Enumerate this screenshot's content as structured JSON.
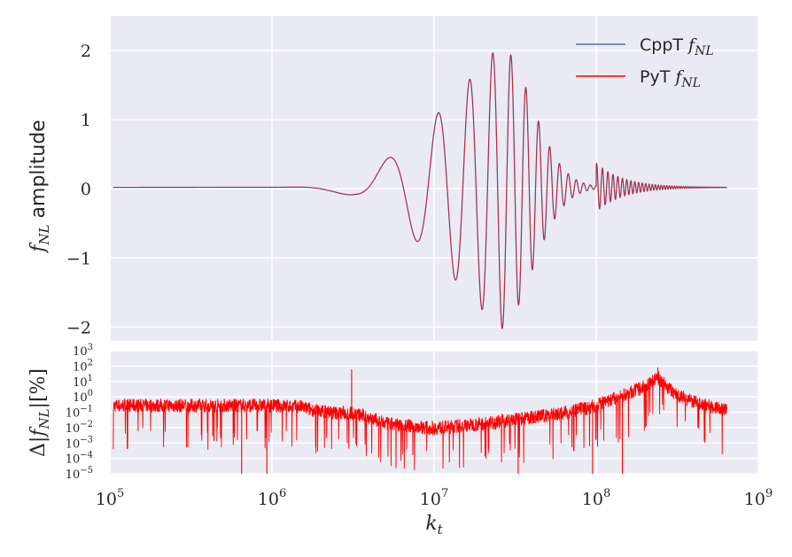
{
  "chart_data": [
    {
      "type": "line",
      "ylabel": "f_NL amplitude",
      "xscale": "log",
      "xlim": [
        100000,
        1000000000
      ],
      "ylim": [
        -2.2,
        2.5
      ],
      "yticks": [
        {
          "value": 2,
          "label": "2"
        },
        {
          "value": 1,
          "label": "1"
        },
        {
          "value": 0,
          "label": "0"
        },
        {
          "value": -1,
          "label": "−1"
        },
        {
          "value": -2,
          "label": "−2"
        }
      ],
      "grid": true,
      "legend_position": "top-right",
      "series": [
        {
          "name": "CppT f_NL",
          "color": "#4c72b0",
          "description_points": [
            [
              100000,
              0.02
            ],
            [
              1000000,
              0.02
            ],
            [
              2500000,
              0.1
            ],
            [
              3700000,
              -0.1
            ],
            [
              5200000,
              0.6
            ],
            [
              7000000,
              -0.7
            ],
            [
              9500000,
              -1.15
            ],
            [
              13000000,
              1.6
            ],
            [
              17000000,
              -1.75
            ],
            [
              25000000,
              2.05
            ],
            [
              30000000,
              -2.0
            ],
            [
              60000000,
              0.8
            ],
            [
              100000000,
              0.05
            ],
            [
              640000000,
              0.02
            ]
          ]
        },
        {
          "name": "PyT f_NL",
          "color": "#ff0000",
          "description_points": [
            [
              100000,
              0.02
            ],
            [
              1000000,
              0.02
            ],
            [
              2500000,
              0.1
            ],
            [
              3700000,
              -0.1
            ],
            [
              5200000,
              0.6
            ],
            [
              7000000,
              -0.7
            ],
            [
              9500000,
              -1.15
            ],
            [
              13000000,
              1.6
            ],
            [
              17000000,
              -1.75
            ],
            [
              25000000,
              2.05
            ],
            [
              30000000,
              -2.0
            ],
            [
              60000000,
              0.8
            ],
            [
              100000000,
              0.05
            ],
            [
              640000000,
              0.02
            ]
          ]
        }
      ]
    },
    {
      "type": "line",
      "xlabel": "k_t",
      "ylabel": "Δ|f_NL|[%]",
      "xscale": "log",
      "yscale": "log",
      "xlim": [
        100000,
        1000000000
      ],
      "ylim": [
        1e-05,
        1000
      ],
      "xticks": [
        {
          "value": 100000,
          "base": "10",
          "exp": "5"
        },
        {
          "value": 1000000,
          "base": "10",
          "exp": "6"
        },
        {
          "value": 10000000,
          "base": "10",
          "exp": "7"
        },
        {
          "value": 100000000,
          "base": "10",
          "exp": "8"
        },
        {
          "value": 1000000000,
          "base": "10",
          "exp": "9"
        }
      ],
      "yticks": [
        {
          "value": 1000,
          "base": "10",
          "exp": "3"
        },
        {
          "value": 100,
          "base": "10",
          "exp": "2"
        },
        {
          "value": 10,
          "base": "10",
          "exp": "1"
        },
        {
          "value": 1,
          "base": "10",
          "exp": "0"
        },
        {
          "value": 0.1,
          "base": "10",
          "exp": "−1"
        },
        {
          "value": 0.01,
          "base": "10",
          "exp": "−2"
        },
        {
          "value": 0.001,
          "base": "10",
          "exp": "−3"
        },
        {
          "value": 0.0001,
          "base": "10",
          "exp": "−4"
        },
        {
          "value": 1e-05,
          "base": "10",
          "exp": "−5"
        }
      ],
      "grid": true,
      "series": [
        {
          "color": "#ff0000",
          "baseline_points": [
            [
              105000,
              0.3
            ],
            [
              1000000,
              0.3
            ],
            [
              1500000,
              0.25
            ],
            [
              1800000,
              0.15
            ],
            [
              2500000,
              0.1
            ],
            [
              3100000,
              0.1
            ],
            [
              4000000,
              0.05
            ],
            [
              5000000,
              0.02
            ],
            [
              10000000,
              0.01
            ],
            [
              20000000,
              0.02
            ],
            [
              40000000,
              0.05
            ],
            [
              70000000,
              0.12
            ],
            [
              100000000,
              0.3
            ],
            [
              150000000,
              1.5
            ],
            [
              200000000,
              5
            ],
            [
              240000000,
              20
            ],
            [
              300000000,
              2
            ],
            [
              400000000,
              0.5
            ],
            [
              640000000,
              0.15
            ]
          ],
          "spikes": [
            [
              3100000,
              60
            ],
            [
              240000000,
              80
            ],
            [
              650000,
              1e-05
            ],
            [
              930000,
              1e-05
            ],
            [
              33000000,
              1e-05
            ],
            [
              95000000,
              1e-05
            ],
            [
              145000000,
              1e-05
            ]
          ]
        }
      ]
    }
  ]
}
